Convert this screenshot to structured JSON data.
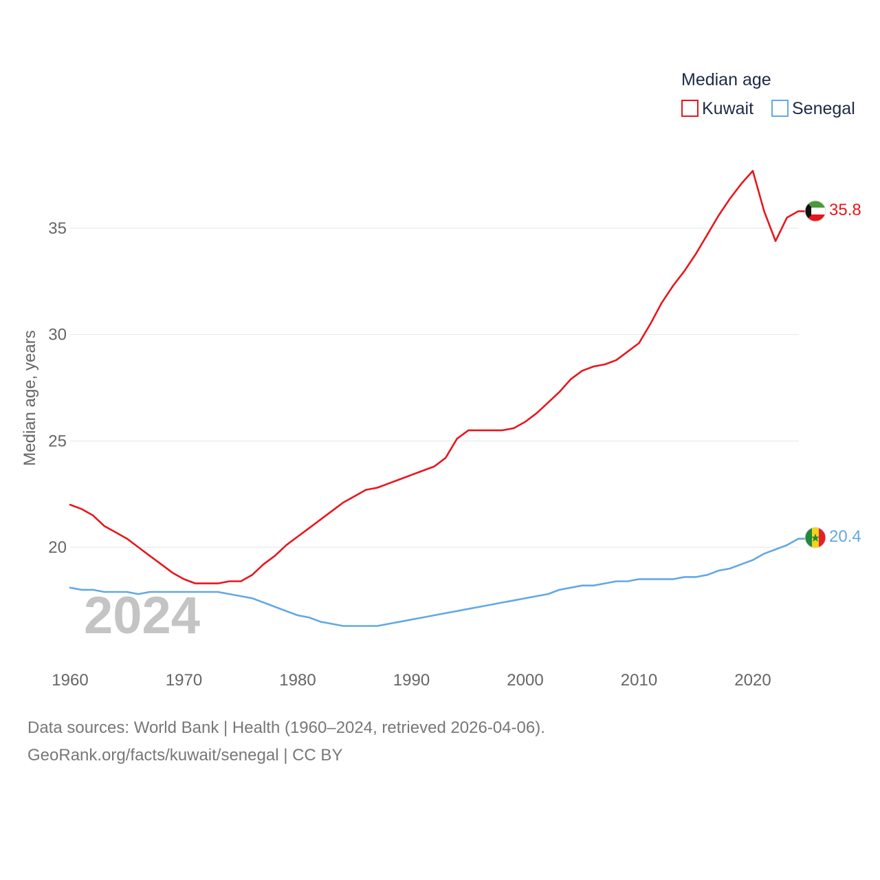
{
  "chart_data": {
    "type": "line",
    "title": "",
    "xlabel": "",
    "ylabel": "Median age, years",
    "xlim": [
      1960,
      2025
    ],
    "ylim": [
      14.5,
      38
    ],
    "xticks": [
      1960,
      1970,
      1980,
      1990,
      2000,
      2010,
      2020
    ],
    "yticks": [
      20,
      25,
      30,
      35
    ],
    "grid": true,
    "legend": {
      "title": "Median age",
      "position": "top-right",
      "entries": [
        "Kuwait",
        "Senegal"
      ]
    },
    "current_year": "2024",
    "x": [
      1960,
      1961,
      1962,
      1963,
      1964,
      1965,
      1966,
      1967,
      1968,
      1969,
      1970,
      1971,
      1972,
      1973,
      1974,
      1975,
      1976,
      1977,
      1978,
      1979,
      1980,
      1981,
      1982,
      1983,
      1984,
      1985,
      1986,
      1987,
      1988,
      1989,
      1990,
      1991,
      1992,
      1993,
      1994,
      1995,
      1996,
      1997,
      1998,
      1999,
      2000,
      2001,
      2002,
      2003,
      2004,
      2005,
      2006,
      2007,
      2008,
      2009,
      2010,
      2011,
      2012,
      2013,
      2014,
      2015,
      2016,
      2017,
      2018,
      2019,
      2020,
      2021,
      2022,
      2023,
      2024
    ],
    "series": [
      {
        "name": "Kuwait",
        "color": "#e8151b",
        "end_label": "35.8",
        "values": [
          22.0,
          21.8,
          21.5,
          21.0,
          20.7,
          20.4,
          20.0,
          19.6,
          19.2,
          18.8,
          18.5,
          18.3,
          18.3,
          18.3,
          18.4,
          18.4,
          18.7,
          19.2,
          19.6,
          20.1,
          20.5,
          20.9,
          21.3,
          21.7,
          22.1,
          22.4,
          22.7,
          22.8,
          23.0,
          23.2,
          23.4,
          23.6,
          23.8,
          24.2,
          25.1,
          25.5,
          25.5,
          25.5,
          25.5,
          25.6,
          25.9,
          26.3,
          26.8,
          27.3,
          27.9,
          28.3,
          28.5,
          28.6,
          28.8,
          29.2,
          29.6,
          30.5,
          31.5,
          32.3,
          33.0,
          33.8,
          34.7,
          35.6,
          36.4,
          37.1,
          37.7,
          35.8,
          34.4,
          35.5,
          35.8
        ]
      },
      {
        "name": "Senegal",
        "color": "#62a8e5",
        "end_label": "20.4",
        "values": [
          18.1,
          18.0,
          18.0,
          17.9,
          17.9,
          17.9,
          17.8,
          17.9,
          17.9,
          17.9,
          17.9,
          17.9,
          17.9,
          17.9,
          17.8,
          17.7,
          17.6,
          17.4,
          17.2,
          17.0,
          16.8,
          16.7,
          16.5,
          16.4,
          16.3,
          16.3,
          16.3,
          16.3,
          16.4,
          16.5,
          16.6,
          16.7,
          16.8,
          16.9,
          17.0,
          17.1,
          17.2,
          17.3,
          17.4,
          17.5,
          17.6,
          17.7,
          17.8,
          18.0,
          18.1,
          18.2,
          18.2,
          18.3,
          18.4,
          18.4,
          18.5,
          18.5,
          18.5,
          18.5,
          18.6,
          18.6,
          18.7,
          18.9,
          19.0,
          19.2,
          19.4,
          19.7,
          19.9,
          20.1,
          20.4
        ]
      }
    ]
  },
  "footer": {
    "source_line": "Data sources: World Bank | Health (1960–2024, retrieved 2026-04-06).",
    "attribution_line": "GeoRank.org/facts/kuwait/senegal | CC BY"
  }
}
